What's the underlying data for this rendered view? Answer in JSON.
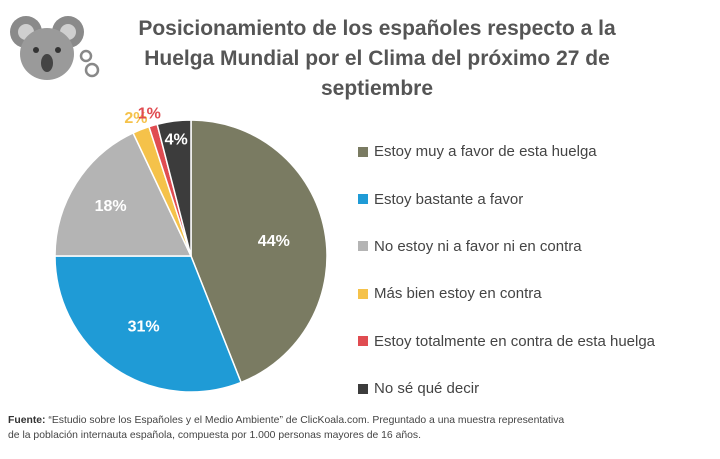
{
  "header": {
    "title_lines": [
      "Posicionamiento de los españoles respecto a la",
      "Huelga Mundial por el Clima del próximo 27 de",
      "septiembre"
    ]
  },
  "logo": {
    "icon": "koala-logo-icon"
  },
  "chart_data": {
    "type": "pie",
    "title": "Posicionamiento de los españoles respecto a la Huelga Mundial por el Clima del próximo 27 de septiembre",
    "legend_position": "right",
    "slices": [
      {
        "label": "Estoy muy a favor de esta huelga",
        "value": 44,
        "display": "44%",
        "color": "#7a7b62"
      },
      {
        "label": "Estoy bastante a favor",
        "value": 31,
        "display": "31%",
        "color": "#1f9bd6"
      },
      {
        "label": "No estoy ni a favor ni en contra",
        "value": 18,
        "display": "18%",
        "color": "#b4b4b4"
      },
      {
        "label": "Más bien estoy en contra",
        "value": 2,
        "display": "2%",
        "color": "#f5c24a"
      },
      {
        "label": "Estoy totalmente en contra de esta huelga",
        "value": 1,
        "display": "1%",
        "color": "#e04c51"
      },
      {
        "label": "No sé qué decir",
        "value": 4,
        "display": "4%",
        "color": "#3c3c3c"
      }
    ]
  },
  "footer": {
    "label": "Fuente:",
    "line1": " “Estudio sobre los Españoles y el Medio Ambiente” de ClicKoala.com. Preguntado a una muestra representativa",
    "line2": "de la población internauta española, compuesta por 1.000 personas mayores de 16 años."
  }
}
